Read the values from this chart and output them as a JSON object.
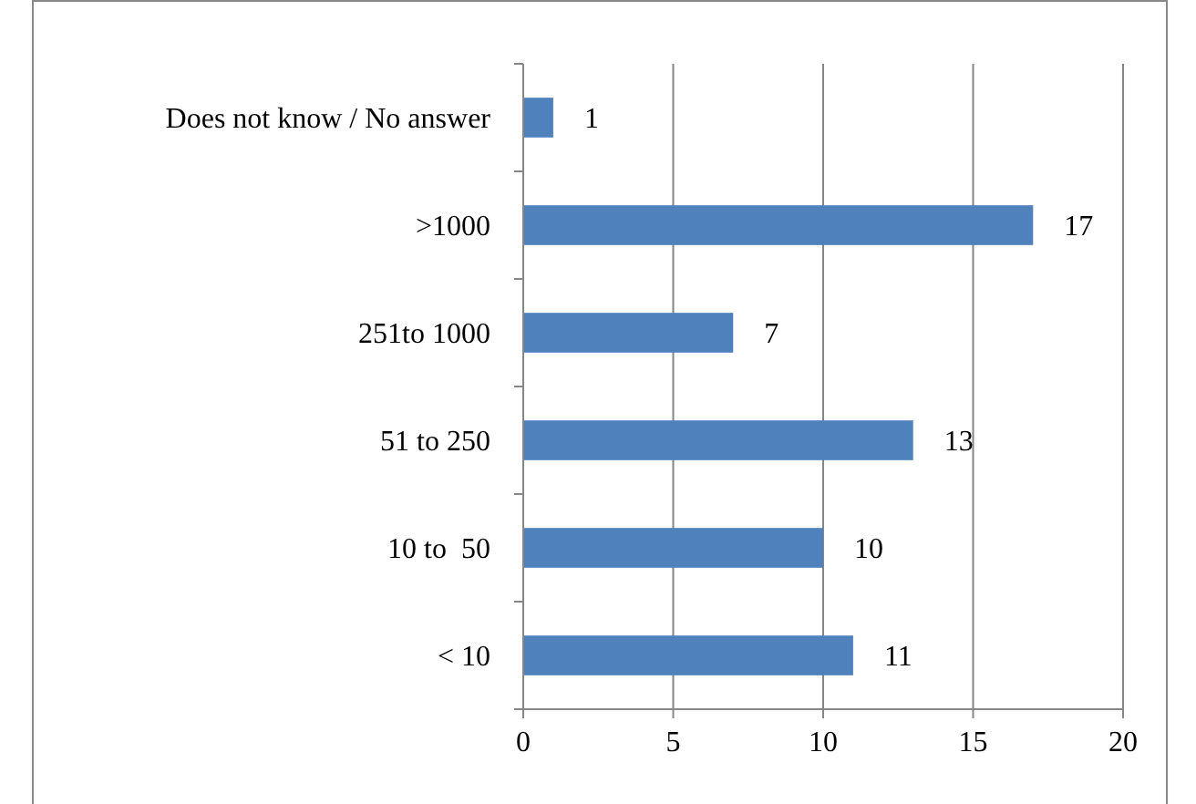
{
  "chart_data": {
    "type": "bar",
    "orientation": "horizontal",
    "categories": [
      "Does not know / No answer",
      ">1000",
      "251to 1000",
      "51 to 250",
      "10 to  50",
      "< 10"
    ],
    "values": [
      1,
      17,
      7,
      13,
      10,
      11
    ],
    "color": "#4f81bd",
    "xlim": [
      0,
      20
    ],
    "xticks": [
      0,
      5,
      10,
      15,
      20
    ],
    "grid": "x",
    "data_labels": true
  }
}
